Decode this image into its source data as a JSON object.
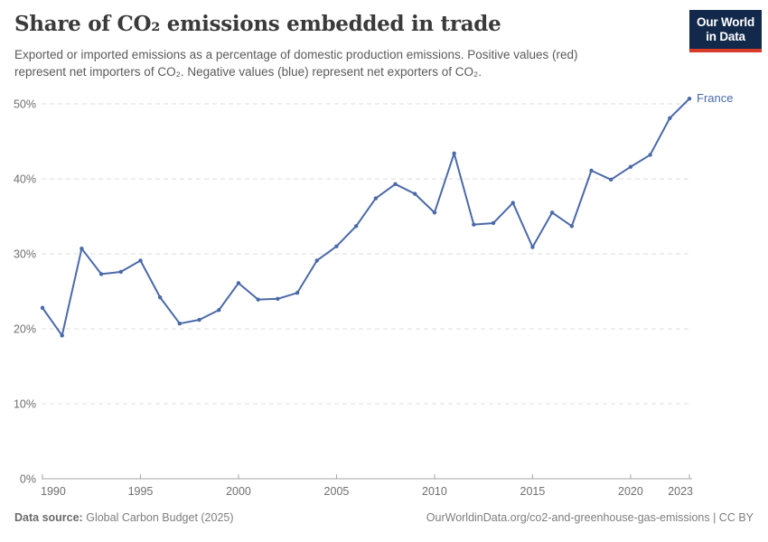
{
  "header": {
    "title": "Share of CO₂ emissions embedded in trade",
    "subtitle": {
      "lines": [
        "Exported or imported emissions as a percentage of domestic production emissions. Positive values (red)",
        "represent net importers of CO₂. Negative values (blue) represent net exporters of CO₂."
      ]
    },
    "logo": {
      "line1": "Our World",
      "line2": "in Data",
      "bg_color": "#12294B",
      "accent_color": "#D93B2B"
    }
  },
  "chart_data": {
    "type": "line",
    "title": "Share of CO₂ emissions embedded in trade",
    "xlabel": "",
    "ylabel": "",
    "xlim": [
      1990,
      2023
    ],
    "ylim": [
      0,
      50
    ],
    "grid": "horizontal-dashed",
    "legend_position": "line-end-label",
    "x_ticks": [
      1990,
      1995,
      2000,
      2005,
      2010,
      2015,
      2020,
      2023
    ],
    "y_ticks": [
      0,
      10,
      20,
      30,
      40,
      50
    ],
    "y_tick_suffix": "%",
    "axis_color": "#a6a6a6",
    "grid_color": "#dcdcdc",
    "tick_label_color": "#6f6f6f",
    "series": [
      {
        "name": "France",
        "color": "#4A69A8",
        "x": [
          1990,
          1991,
          1992,
          1993,
          1994,
          1995,
          1996,
          1997,
          1998,
          1999,
          2000,
          2001,
          2002,
          2003,
          2004,
          2005,
          2006,
          2007,
          2008,
          2009,
          2010,
          2011,
          2012,
          2013,
          2014,
          2015,
          2016,
          2017,
          2018,
          2019,
          2020,
          2021,
          2022,
          2023
        ],
        "values": [
          22.8,
          19.1,
          30.7,
          27.3,
          27.6,
          29.1,
          24.2,
          20.7,
          21.2,
          22.5,
          26.1,
          23.9,
          24.0,
          24.8,
          29.1,
          31.0,
          33.7,
          37.4,
          39.3,
          38.0,
          35.5,
          43.4,
          33.9,
          34.1,
          36.8,
          30.9,
          35.5,
          33.7,
          41.1,
          39.9,
          41.6,
          43.2,
          48.1,
          50.7
        ]
      }
    ]
  },
  "footer": {
    "datasource_label": "Data source:",
    "datasource_value": "Global Carbon Budget (2025)",
    "credit": "OurWorldinData.org/co2-and-greenhouse-gas-emissions | CC BY"
  }
}
